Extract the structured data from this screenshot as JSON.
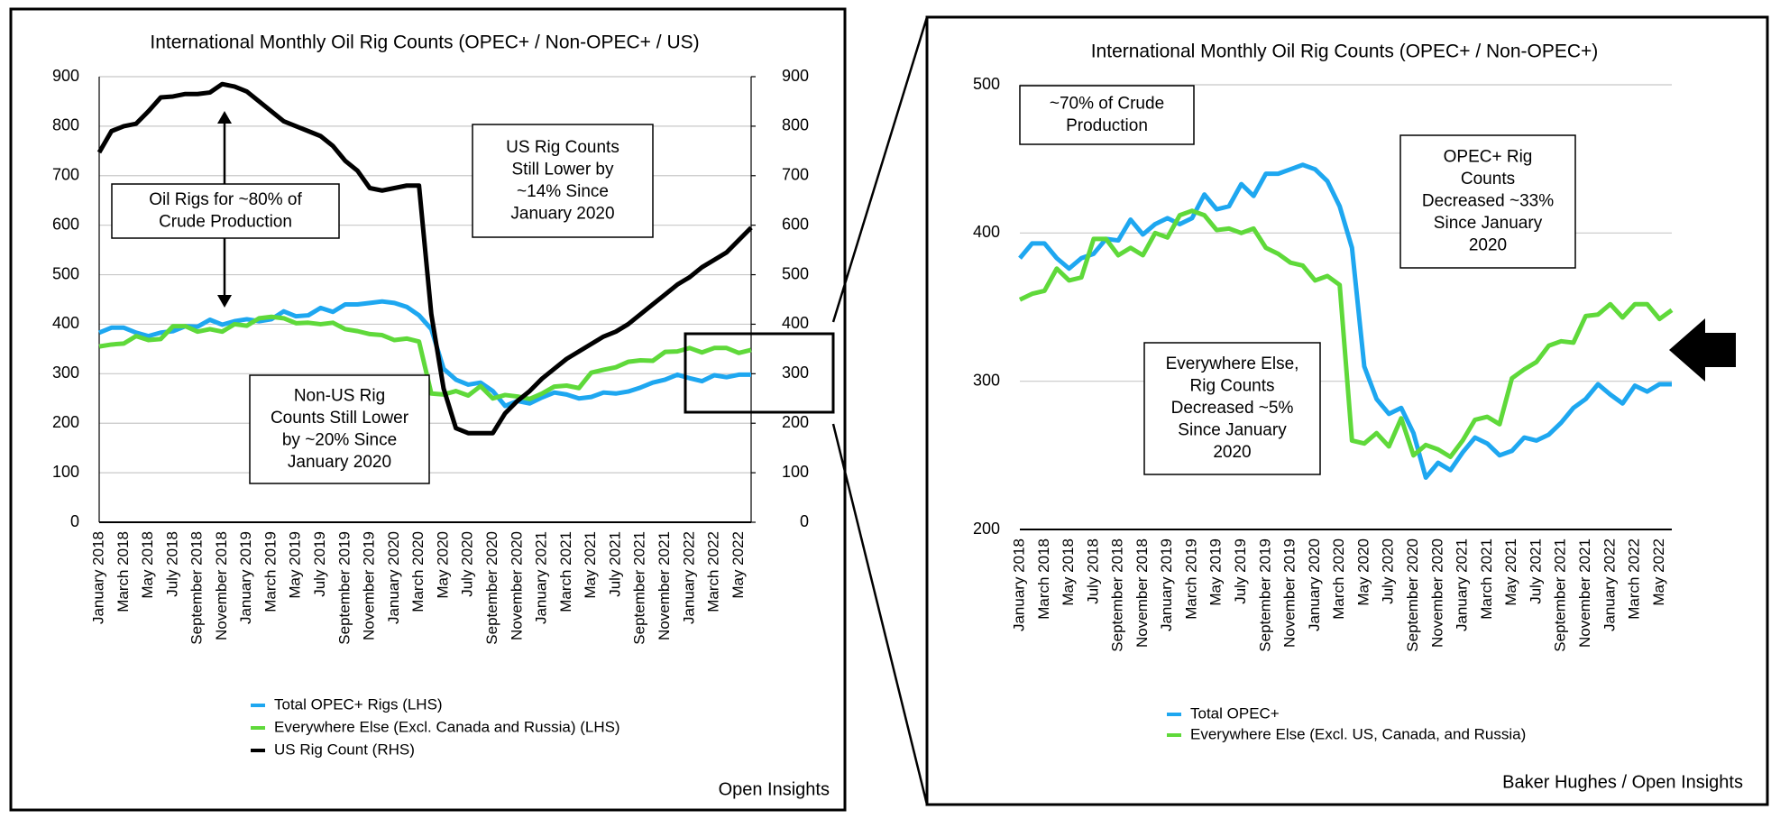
{
  "chart_data": [
    {
      "type": "line",
      "title": "International Monthly Oil Rig Counts (OPEC+ / Non-OPEC+ / US)",
      "categories": [
        "January 2018",
        null,
        "March 2018",
        null,
        "May 2018",
        null,
        "July 2018",
        null,
        "September 2018",
        null,
        "November 2018",
        null,
        "January 2019",
        null,
        "March 2019",
        null,
        "May 2019",
        null,
        "July 2019",
        null,
        "September 2019",
        null,
        "November 2019",
        null,
        "January 2020",
        null,
        "March 2020",
        null,
        "May 2020",
        null,
        "July 2020",
        null,
        "September 2020",
        null,
        "November 2020",
        null,
        "January 2021",
        null,
        "March 2021",
        null,
        "May 2021",
        null,
        "July 2021",
        null,
        "September 2021",
        null,
        "November 2021",
        null,
        "January 2022",
        null,
        "March 2022",
        null,
        "May 2022",
        null
      ],
      "series": [
        {
          "name": "Total OPEC+ Rigs (LHS)",
          "color": "#1ea7f0",
          "values": [
            383,
            393,
            393,
            383,
            376,
            383,
            386,
            396,
            395,
            409,
            399,
            406,
            410,
            406,
            410,
            426,
            416,
            418,
            433,
            425,
            440,
            440,
            443,
            446,
            443,
            435,
            418,
            390,
            310,
            288,
            278,
            282,
            265,
            235,
            245,
            240,
            252,
            262,
            258,
            250,
            253,
            262,
            260,
            264,
            272,
            282,
            288,
            298,
            291,
            285,
            297,
            293,
            298,
            298
          ]
        },
        {
          "name": "Everywhere Else (Excl. Canada and Russia) (LHS)",
          "color": "#5fd93a",
          "values": [
            355,
            359,
            361,
            376,
            368,
            370,
            396,
            396,
            385,
            390,
            385,
            400,
            397,
            412,
            415,
            412,
            402,
            403,
            400,
            403,
            390,
            386,
            380,
            378,
            368,
            371,
            365,
            260,
            258,
            265,
            256,
            275,
            250,
            257,
            254,
            249,
            260,
            274,
            276,
            271,
            302,
            308,
            313,
            324,
            327,
            326,
            344,
            345,
            352,
            343,
            352,
            352,
            342,
            348
          ]
        },
        {
          "name": "US Rig Count (RHS)",
          "color": "#000000",
          "axis": "y2",
          "values": [
            747,
            790,
            800,
            805,
            830,
            858,
            860,
            865,
            865,
            868,
            885,
            880,
            870,
            850,
            830,
            810,
            800,
            790,
            780,
            760,
            730,
            710,
            675,
            670,
            675,
            680,
            680,
            420,
            270,
            190,
            180,
            180,
            180,
            220,
            245,
            265,
            290,
            310,
            330,
            345,
            360,
            375,
            385,
            400,
            420,
            440,
            460,
            480,
            495,
            515,
            530,
            545,
            570,
            595
          ]
        }
      ],
      "ylim": [
        0,
        900
      ],
      "yticks": [
        0,
        100,
        200,
        300,
        400,
        500,
        600,
        700,
        800,
        900
      ],
      "y2lim": [
        0,
        900
      ],
      "y2ticks": [
        0,
        100,
        200,
        300,
        400,
        500,
        600,
        700,
        800,
        900
      ],
      "grid": true,
      "annotations": [
        {
          "lines": [
            "Oil Rigs for ~80% of",
            "Crude Production"
          ]
        },
        {
          "lines": [
            "US Rig Counts",
            "Still Lower by",
            "~14% Since",
            "January 2020"
          ]
        },
        {
          "lines": [
            "Non-US Rig",
            "Counts Still Lower",
            "by ~20% Since",
            "January 2020"
          ]
        }
      ],
      "source": "Open Insights"
    },
    {
      "type": "line",
      "title": "International Monthly Oil Rig Counts (OPEC+ / Non-OPEC+)",
      "categories": [
        "January 2018",
        null,
        "March 2018",
        null,
        "May 2018",
        null,
        "July 2018",
        null,
        "September 2018",
        null,
        "November 2018",
        null,
        "January 2019",
        null,
        "March 2019",
        null,
        "May 2019",
        null,
        "July 2019",
        null,
        "September 2019",
        null,
        "November 2019",
        null,
        "January 2020",
        null,
        "March 2020",
        null,
        "May 2020",
        null,
        "July 2020",
        null,
        "September 2020",
        null,
        "November 2020",
        null,
        "January 2021",
        null,
        "March 2021",
        null,
        "May 2021",
        null,
        "July 2021",
        null,
        "September 2021",
        null,
        "November 2021",
        null,
        "January 2022",
        null,
        "March 2022",
        null,
        "May 2022",
        null
      ],
      "series": [
        {
          "name": "Total OPEC+",
          "color": "#1ea7f0",
          "values": [
            383,
            393,
            393,
            383,
            376,
            383,
            386,
            396,
            395,
            409,
            399,
            406,
            410,
            406,
            410,
            426,
            416,
            418,
            433,
            425,
            440,
            440,
            443,
            446,
            443,
            435,
            418,
            390,
            310,
            288,
            278,
            282,
            265,
            235,
            245,
            240,
            252,
            262,
            258,
            250,
            253,
            262,
            260,
            264,
            272,
            282,
            288,
            298,
            291,
            285,
            297,
            293,
            298,
            298
          ]
        },
        {
          "name": "Everywhere Else (Excl. US, Canada, and Russia)",
          "color": "#5fd93a",
          "values": [
            355,
            359,
            361,
            376,
            368,
            370,
            396,
            396,
            385,
            390,
            385,
            400,
            397,
            412,
            415,
            412,
            402,
            403,
            400,
            403,
            390,
            386,
            380,
            378,
            368,
            371,
            365,
            260,
            258,
            265,
            256,
            275,
            250,
            257,
            254,
            249,
            260,
            274,
            276,
            271,
            302,
            308,
            313,
            324,
            327,
            326,
            344,
            345,
            352,
            343,
            352,
            352,
            342,
            348
          ]
        }
      ],
      "ylim": [
        200,
        500
      ],
      "yticks": [
        200,
        300,
        400,
        500
      ],
      "grid": true,
      "annotations": [
        {
          "lines": [
            "~70% of Crude",
            "Production"
          ]
        },
        {
          "lines": [
            "OPEC+ Rig",
            "Counts",
            "Decreased ~33%",
            "Since January",
            "2020"
          ]
        },
        {
          "lines": [
            "Everywhere Else,",
            "Rig Counts",
            "Decreased ~5%",
            "Since January",
            "2020"
          ]
        }
      ],
      "source": "Baker Hughes / Open Insights"
    }
  ]
}
